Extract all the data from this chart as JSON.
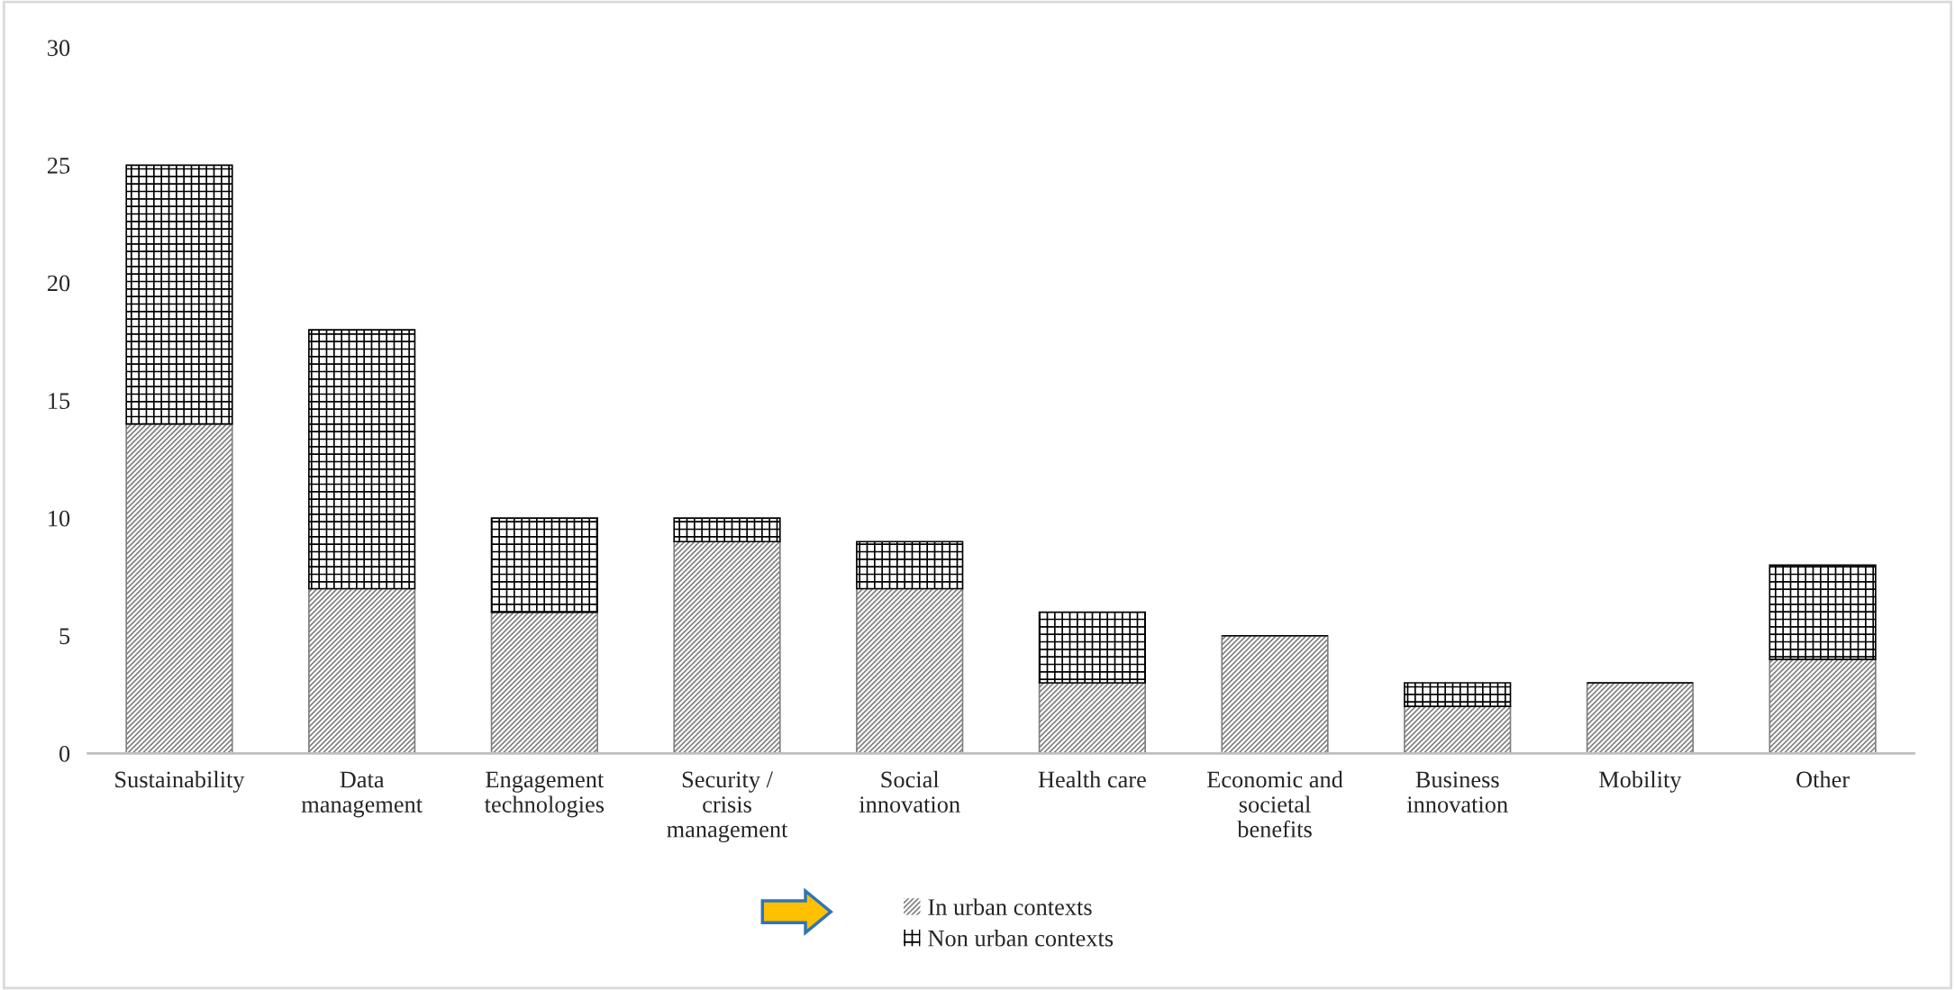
{
  "chart_data": {
    "type": "bar",
    "stacked": true,
    "categories": [
      "Sustainability",
      "Data\nmanagement",
      "Engagement\ntechnologies",
      "Security /\ncrisis\nmanagement",
      "Social\ninnovation",
      "Health care",
      "Economic and\nsocietal\nbenefits",
      "Business\ninnovation",
      "Mobility",
      "Other"
    ],
    "series": [
      {
        "name": "In urban contexts",
        "color": "#7f7f7f",
        "values": [
          14,
          7,
          6,
          9,
          7,
          3,
          5,
          2,
          3,
          4
        ]
      },
      {
        "name": "Non urban contexts",
        "color": "#000000",
        "values": [
          11,
          11,
          4,
          1,
          2,
          3,
          0,
          1,
          0,
          4
        ]
      }
    ],
    "ylim": [
      0,
      30
    ],
    "yticks": [
      0,
      5,
      10,
      15,
      20,
      25,
      30
    ],
    "grid": false,
    "legend": "bottom"
  }
}
